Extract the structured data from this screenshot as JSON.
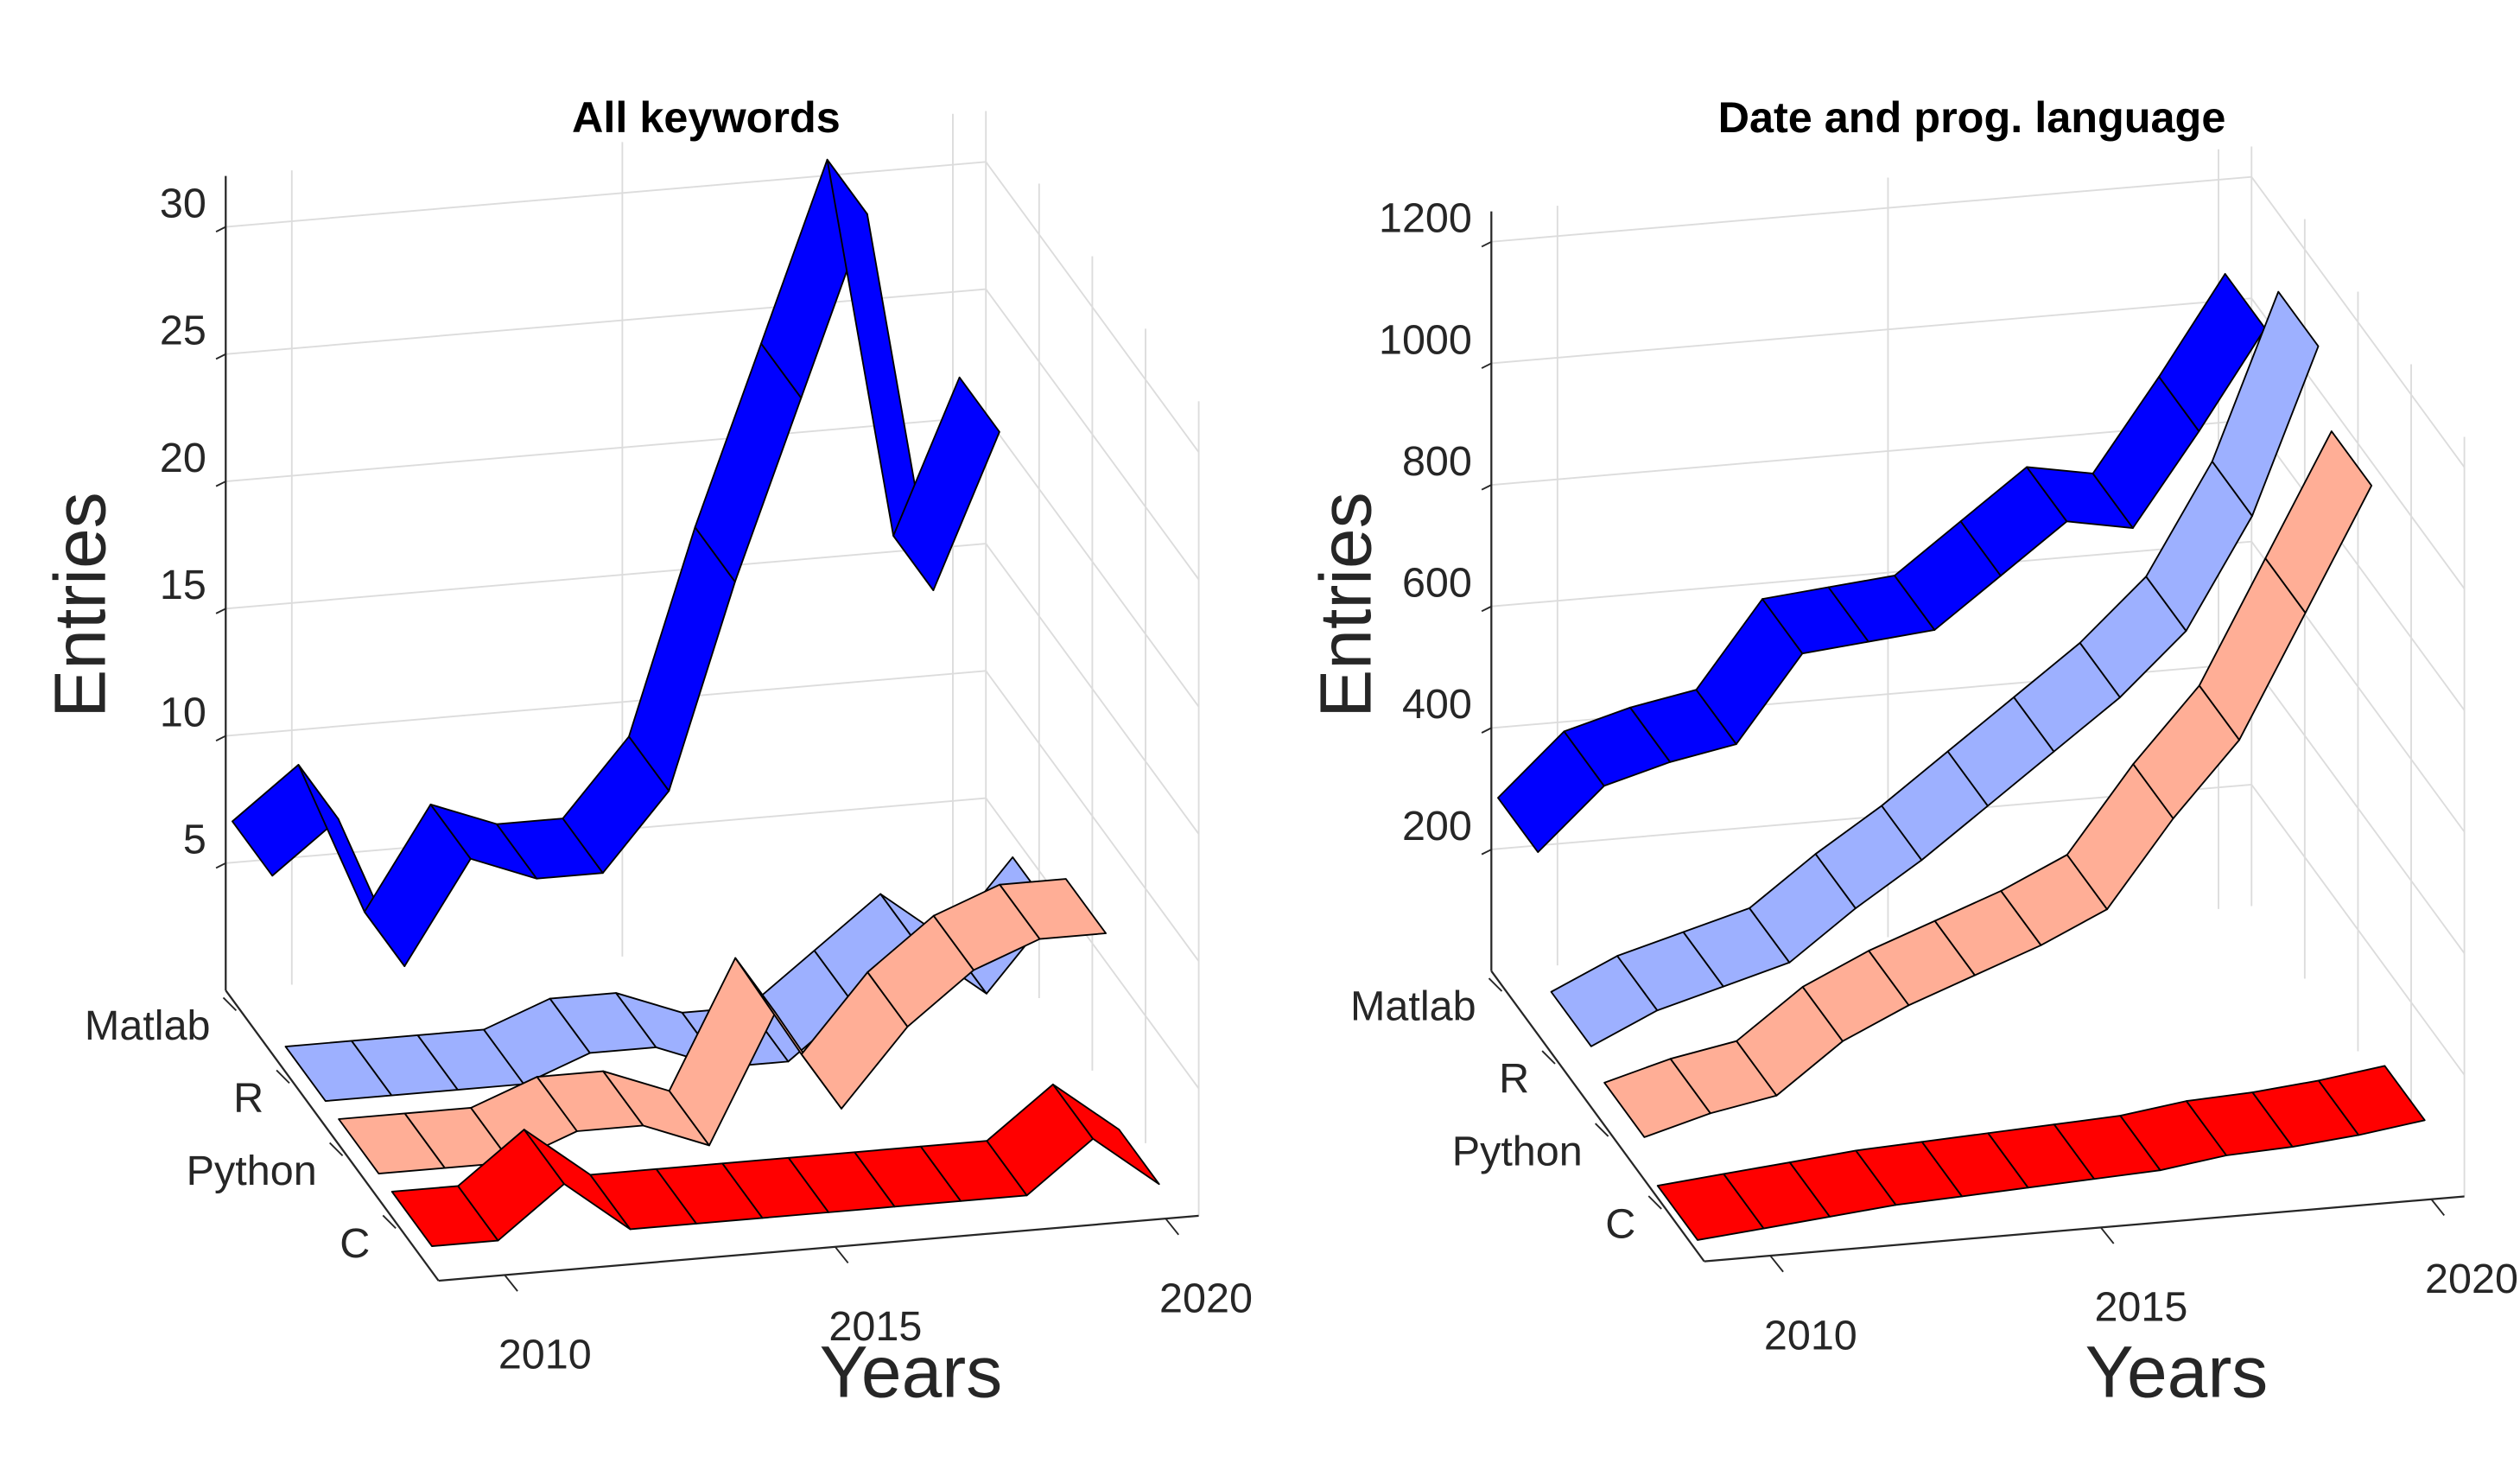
{
  "chart_data": [
    {
      "type": "ribbon",
      "title": "All keywords",
      "x_label": "Years",
      "y_label": "Entries",
      "x": [
        2009,
        2010,
        2011,
        2012,
        2013,
        2014,
        2015,
        2016,
        2017,
        2018,
        2019,
        2020
      ],
      "series": [
        {
          "name": "Matlab",
          "color": "#0000ff",
          "values": [
            7,
            9,
            3,
            7,
            6,
            6,
            9,
            17,
            24,
            31,
            16,
            22
          ]
        },
        {
          "name": "R",
          "color": "#9db0ff",
          "values": [
            1,
            1,
            1,
            1,
            2,
            2,
            1,
            1,
            3,
            5,
            3,
            6
          ]
        },
        {
          "name": "Python",
          "color": "#ffae96",
          "values": [
            1,
            1,
            1,
            2,
            2,
            1,
            6,
            2,
            5,
            7,
            8,
            8
          ]
        },
        {
          "name": "C",
          "color": "#ff0000",
          "values": [
            1,
            1,
            3,
            1,
            1,
            1,
            1,
            1,
            1,
            1,
            3,
            1
          ]
        }
      ],
      "xlim": [
        2009,
        2020.5
      ],
      "xticks": [
        2010,
        2015,
        2020
      ],
      "ylim": [
        0,
        32
      ],
      "yticks": [
        5,
        10,
        15,
        20,
        25,
        30
      ],
      "grid": true
    },
    {
      "type": "ribbon",
      "title": "Date and prog. language",
      "x_label": "Years",
      "y_label": "Entries",
      "x": [
        2009,
        2010,
        2011,
        2012,
        2013,
        2014,
        2015,
        2016,
        2017,
        2018,
        2019,
        2020
      ],
      "series": [
        {
          "name": "Matlab",
          "color": "#0000ff",
          "values": [
            300,
            400,
            430,
            450,
            590,
            600,
            610,
            690,
            770,
            750,
            900,
            1060
          ]
        },
        {
          "name": "R",
          "color": "#9db0ff",
          "values": [
            100,
            150,
            180,
            210,
            290,
            360,
            440,
            520,
            600,
            700,
            880,
            1150
          ]
        },
        {
          "name": "Python",
          "color": "#ffae96",
          "values": [
            70,
            100,
            120,
            200,
            250,
            290,
            330,
            380,
            520,
            640,
            840,
            1040
          ]
        },
        {
          "name": "C",
          "color": "#ff0000",
          "values": [
            20,
            30,
            40,
            50,
            55,
            60,
            65,
            70,
            85,
            90,
            100,
            115
          ]
        }
      ],
      "xlim": [
        2009,
        2020.5
      ],
      "xticks": [
        2010,
        2015,
        2020
      ],
      "ylim": [
        0,
        1250
      ],
      "yticks": [
        200,
        400,
        600,
        800,
        1000,
        1200
      ],
      "grid": true
    }
  ]
}
